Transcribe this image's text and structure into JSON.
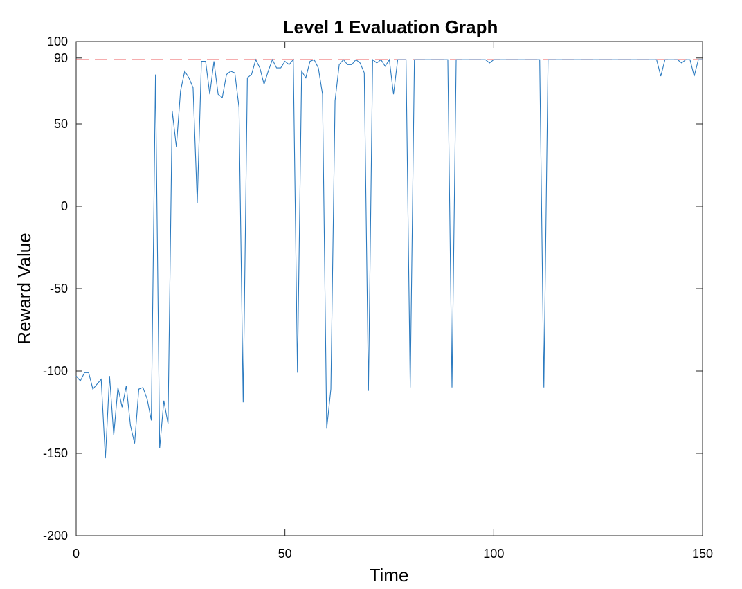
{
  "chart_data": {
    "type": "line",
    "title": "Level 1 Evaluation Graph",
    "xlabel": "Time",
    "ylabel": "Reward Value",
    "xlim": [
      0,
      150
    ],
    "ylim": [
      -200,
      100
    ],
    "xticks": [
      0,
      50,
      100,
      150
    ],
    "yticks": [
      -200,
      -150,
      -100,
      -50,
      0,
      50,
      90,
      100
    ],
    "grid": false,
    "legend": "none",
    "reference_line": {
      "y": 89,
      "style": "dashed",
      "color": "#e8262a"
    },
    "series": [
      {
        "color": "#2c7bc0",
        "x": [
          0,
          1,
          2,
          3,
          4,
          5,
          6,
          7,
          8,
          9,
          10,
          11,
          12,
          13,
          14,
          15,
          16,
          17,
          18,
          19,
          20,
          21,
          22,
          23,
          24,
          25,
          26,
          27,
          28,
          29,
          30,
          31,
          32,
          33,
          34,
          35,
          36,
          37,
          38,
          39,
          40,
          41,
          42,
          43,
          44,
          45,
          46,
          47,
          48,
          49,
          50,
          51,
          52,
          53,
          54,
          55,
          56,
          57,
          58,
          59,
          60,
          61,
          62,
          63,
          64,
          65,
          66,
          67,
          68,
          69,
          70,
          71,
          72,
          73,
          74,
          75,
          76,
          77,
          78,
          79,
          80,
          81,
          82,
          83,
          84,
          85,
          86,
          87,
          88,
          89,
          90,
          91,
          92,
          93,
          94,
          95,
          96,
          97,
          98,
          99,
          100,
          101,
          102,
          103,
          104,
          105,
          106,
          107,
          108,
          109,
          110,
          111,
          112,
          113,
          114,
          115,
          116,
          117,
          118,
          119,
          120,
          121,
          122,
          123,
          124,
          125,
          126,
          127,
          128,
          129,
          130,
          131,
          132,
          133,
          134,
          135,
          136,
          137,
          138,
          139,
          140,
          141,
          142,
          143,
          144,
          145,
          146,
          147,
          148,
          149,
          150
        ],
        "y": [
          -103,
          -106,
          -101,
          -101,
          -111,
          -108,
          -105,
          -153,
          -103,
          -139,
          -110,
          -122,
          -109,
          -133,
          -144,
          -111,
          -110,
          -117,
          -130,
          80,
          -147,
          -118,
          -132,
          58,
          36,
          70,
          82,
          78,
          72,
          2,
          88,
          88,
          68,
          88,
          68,
          66,
          80,
          82,
          81,
          60,
          -119,
          78,
          80,
          89,
          84,
          74,
          82,
          89,
          84,
          84,
          88,
          86,
          89,
          -101,
          82,
          78,
          88,
          89,
          84,
          68,
          -135,
          -111,
          64,
          86,
          89,
          86,
          86,
          89,
          87,
          81,
          -112,
          89,
          87,
          89,
          85,
          89,
          68,
          89,
          89,
          89,
          -110,
          89,
          89,
          89,
          89,
          89,
          89,
          89,
          89,
          89,
          -110,
          89,
          89,
          89,
          89,
          89,
          89,
          89,
          89,
          87,
          89,
          89,
          89,
          89,
          89,
          89,
          89,
          89,
          89,
          89,
          89,
          89,
          -110,
          89,
          89,
          89,
          89,
          89,
          89,
          89,
          89,
          89,
          89,
          89,
          89,
          89,
          89,
          89,
          89,
          89,
          89,
          89,
          89,
          89,
          89,
          89,
          89,
          89,
          89,
          89,
          79,
          89,
          89,
          89,
          89,
          87,
          89,
          89,
          79,
          89,
          89
        ]
      }
    ]
  }
}
